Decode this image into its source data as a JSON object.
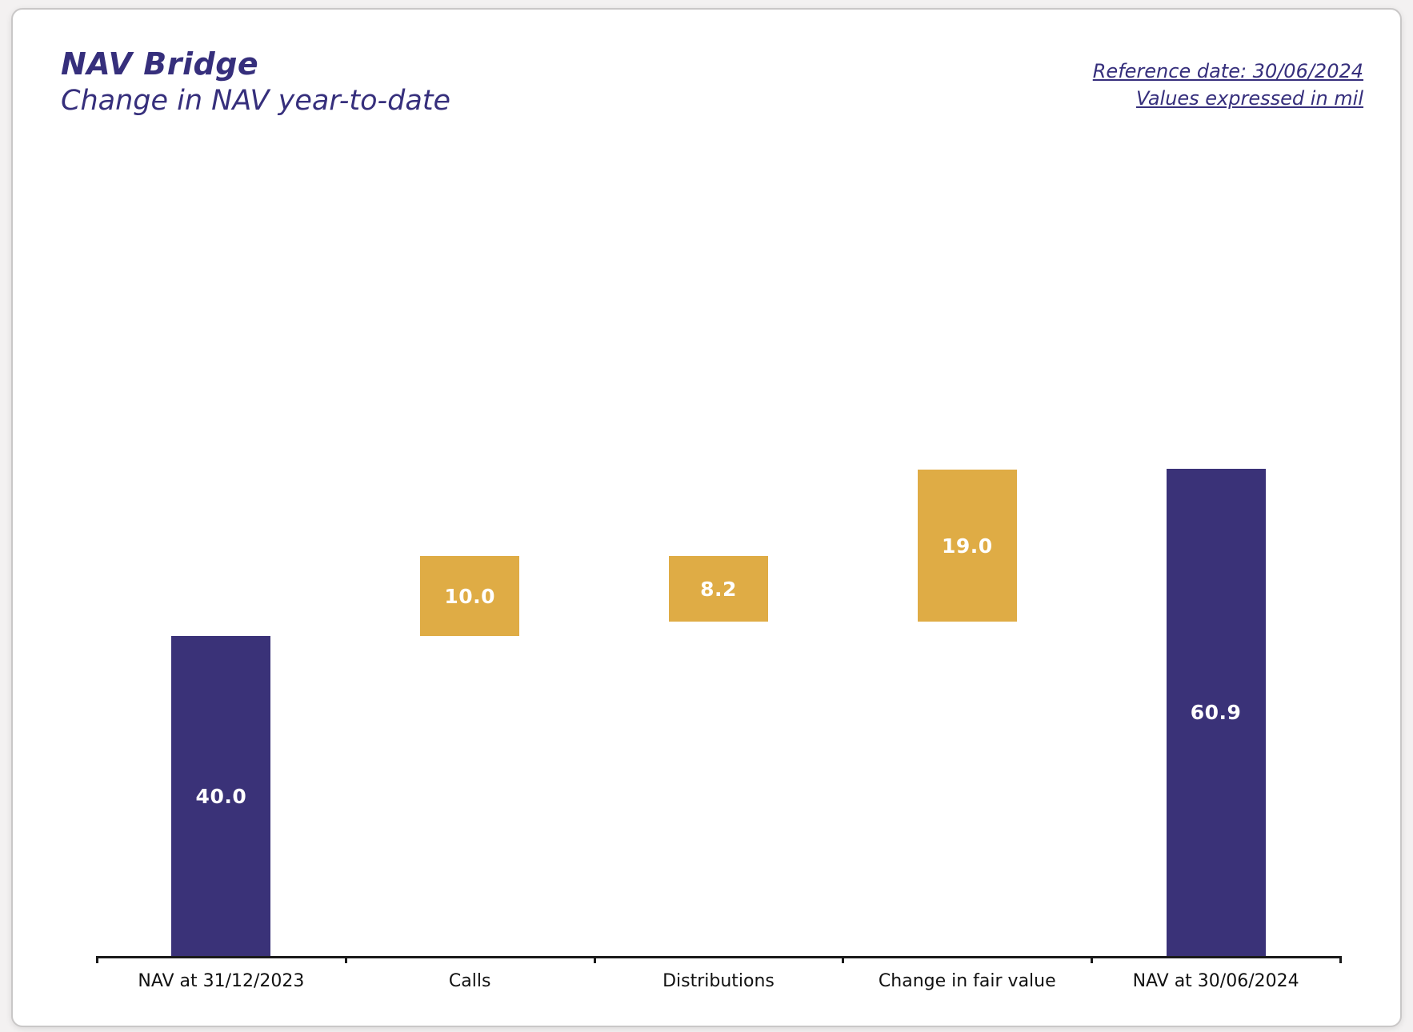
{
  "page": {
    "background_color": "#f3f1f1",
    "card_border_color": "#c9c7c7"
  },
  "header": {
    "title": "NAV Bridge",
    "subtitle": "Change in NAV year-to-date",
    "reference_date": "Reference date: 30/06/2024",
    "values_note": "Values expressed in mil",
    "text_color": "#362f7c"
  },
  "chart_data": {
    "type": "waterfall",
    "title": "NAV Bridge",
    "subtitle": "Change in NAV year-to-date",
    "unit_note": "Values expressed in mil",
    "categories": [
      "NAV at 31/12/2023",
      "Calls",
      "Distributions",
      "Change in fair value",
      "NAV at 30/06/2024"
    ],
    "steps": [
      {
        "category": "NAV at 31/12/2023",
        "kind": "total",
        "value": 40.0,
        "label": "40.0",
        "start": 0,
        "end": 40.0
      },
      {
        "category": "Calls",
        "kind": "increase",
        "value": 10.0,
        "label": "10.0",
        "start": 40.0,
        "end": 50.0
      },
      {
        "category": "Distributions",
        "kind": "decrease",
        "value": 8.2,
        "label": "8.2",
        "start": 50.0,
        "end": 41.8
      },
      {
        "category": "Change in fair value",
        "kind": "increase",
        "value": 19.0,
        "label": "19.0",
        "start": 41.8,
        "end": 60.8
      },
      {
        "category": "NAV at 30/06/2024",
        "kind": "total",
        "value": 60.9,
        "label": "60.9",
        "start": 0,
        "end": 60.9
      }
    ],
    "ylim": [
      0,
      64
    ],
    "grid": false,
    "legend": false,
    "xlabel": "",
    "ylabel": "",
    "colors": {
      "total": "#3a3278",
      "change": "#dfac45",
      "bar_label_text": "#ffffff",
      "axis": "#1a1a1a",
      "category_label_text": "#111111"
    }
  }
}
